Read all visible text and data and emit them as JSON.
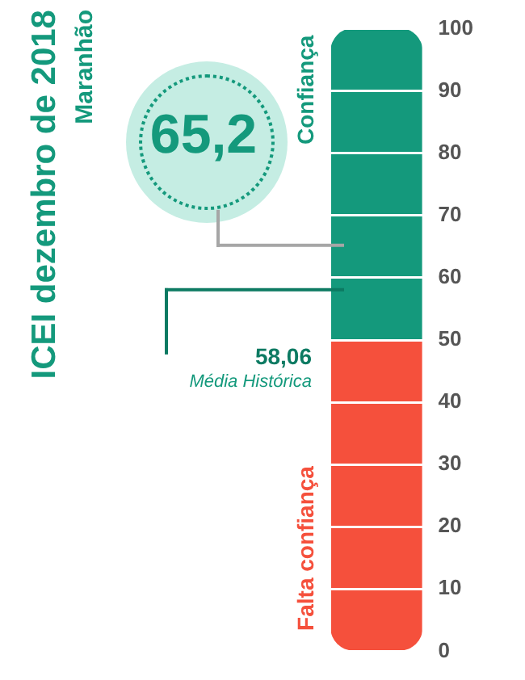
{
  "chart_data": {
    "type": "bar",
    "title": "ICEI dezembro de 2018",
    "subtitle": "Maranhão",
    "categories": [
      null
    ],
    "stacked": true,
    "series": [
      {
        "name": "Falta confiança",
        "color": "#f5503c",
        "values": [
          50
        ]
      },
      {
        "name": "Confiança",
        "color": "#14997c",
        "values": [
          50
        ]
      }
    ],
    "ylim": [
      0,
      100
    ],
    "yticks": [
      0,
      10,
      20,
      30,
      40,
      50,
      60,
      70,
      80,
      90,
      100
    ],
    "grid": "y",
    "tick_labels": "y",
    "ref_lines": [
      {
        "axis": "y",
        "value": 65.2,
        "label": "65,2",
        "color": "#a6a6a6"
      },
      {
        "axis": "y",
        "value": 58.06,
        "label": "58,06",
        "color": "#0c7a62"
      }
    ],
    "annotations": [
      "Média Histórica"
    ]
  }
}
